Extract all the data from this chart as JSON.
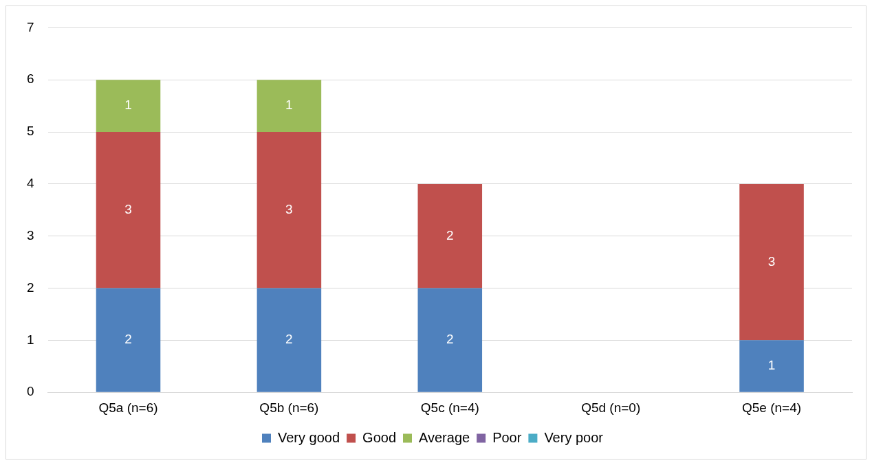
{
  "chart_data": {
    "type": "bar",
    "stacked": true,
    "categories": [
      "Q5a (n=6)",
      "Q5b (n=6)",
      "Q5c (n=4)",
      "Q5d (n=0)",
      "Q5e (n=4)"
    ],
    "series": [
      {
        "name": "Very good",
        "color": "#4f81bd",
        "values": [
          2,
          2,
          2,
          null,
          1
        ]
      },
      {
        "name": "Good",
        "color": "#c0504d",
        "values": [
          3,
          3,
          2,
          null,
          3
        ]
      },
      {
        "name": "Average",
        "color": "#9bbb59",
        "values": [
          1,
          1,
          null,
          null,
          null
        ]
      },
      {
        "name": "Poor",
        "color": "#8064a2",
        "values": [
          null,
          null,
          null,
          null,
          null
        ]
      },
      {
        "name": "Very poor",
        "color": "#4bacc6",
        "values": [
          null,
          null,
          null,
          null,
          null
        ]
      }
    ],
    "ylim": [
      0,
      7
    ],
    "yticks": [
      0,
      1,
      2,
      3,
      4,
      5,
      6,
      7
    ],
    "grid": "y",
    "legend": "bottom",
    "data_labels": true
  }
}
